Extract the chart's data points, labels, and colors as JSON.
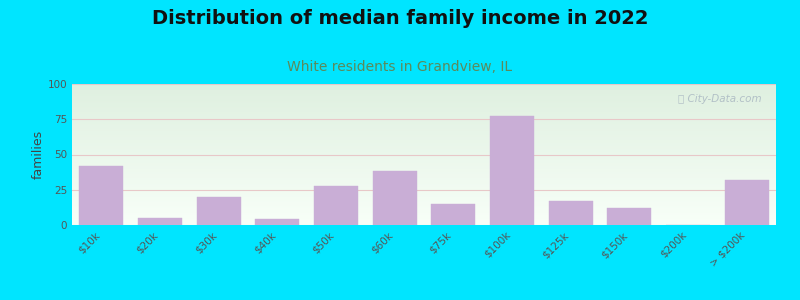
{
  "title": "Distribution of median family income in 2022",
  "subtitle": "White residents in Grandview, IL",
  "watermark": "Ⓣ City-Data.com",
  "xlabel": "",
  "ylabel": "families",
  "categories": [
    "$10k",
    "$20k",
    "$30k",
    "$40k",
    "$50k",
    "$60k",
    "$75k",
    "$100k",
    "$125k",
    "$150k",
    "$200k",
    "> $200k"
  ],
  "values": [
    42,
    5,
    20,
    4,
    28,
    38,
    15,
    77,
    17,
    12,
    0,
    32
  ],
  "bar_color": "#c9aed6",
  "bar_edgecolor": "#c9aed6",
  "ylim": [
    0,
    100
  ],
  "yticks": [
    0,
    25,
    50,
    75,
    100
  ],
  "background_outer": "#00e5ff",
  "background_inner_top": "#dff0e0",
  "background_inner_bottom": "#f8fff8",
  "grid_color": "#e8c8c8",
  "title_fontsize": 14,
  "subtitle_fontsize": 10,
  "subtitle_color": "#5b8a5b",
  "ylabel_fontsize": 9,
  "tick_label_fontsize": 7.5,
  "title_color": "#111111",
  "watermark_color": "#aab8c2"
}
